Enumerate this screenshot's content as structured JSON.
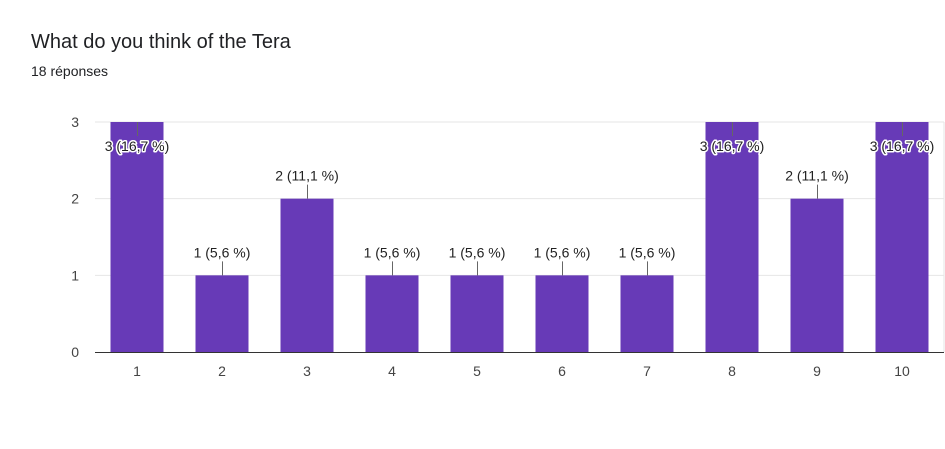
{
  "header": {
    "title": "What do you think of the Tera",
    "responses": "18 réponses"
  },
  "chart_data": {
    "type": "bar",
    "title": "What do you think of the Tera",
    "xlabel": "",
    "ylabel": "",
    "categories": [
      "1",
      "2",
      "3",
      "4",
      "5",
      "6",
      "7",
      "8",
      "9",
      "10"
    ],
    "values": [
      3,
      1,
      2,
      1,
      1,
      1,
      1,
      3,
      2,
      3
    ],
    "data_labels": [
      "3 (16,7 %)",
      "1 (5,6 %)",
      "2 (11,1 %)",
      "1 (5,6 %)",
      "1 (5,6 %)",
      "1 (5,6 %)",
      "1 (5,6 %)",
      "3 (16,7 %)",
      "2 (11,1 %)",
      "3 (16,7 %)"
    ],
    "ylim": [
      0,
      3
    ],
    "yticks": [
      0,
      1,
      2,
      3
    ],
    "grid": true,
    "bar_color": "#673ab7",
    "grid_color": "#e6e6e6",
    "axis_color": "#333333"
  }
}
